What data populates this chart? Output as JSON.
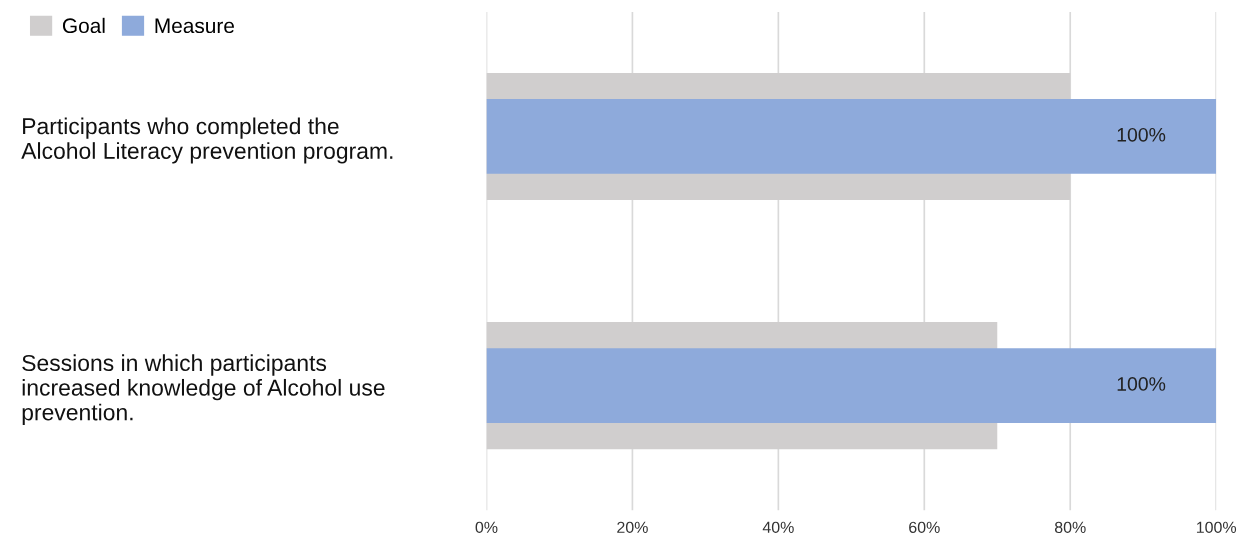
{
  "chart_data": {
    "type": "bar",
    "orientation": "horizontal",
    "categories": [
      "Participants who completed the\nAlcohol Literacy prevention program.",
      "Sessions in which participants\nincreased knowledge of Alcohol use\nprevention."
    ],
    "series": [
      {
        "name": "Goal",
        "color": "#d0cece",
        "values": [
          80,
          70
        ]
      },
      {
        "name": "Measure",
        "color": "#8eaadb",
        "values": [
          100,
          100
        ],
        "value_labels": [
          "100%",
          "100%"
        ]
      }
    ],
    "xlim": [
      0,
      100
    ],
    "xticks": [
      {
        "value": 0,
        "label": "0%"
      },
      {
        "value": 20,
        "label": "20%"
      },
      {
        "value": 40,
        "label": "40%"
      },
      {
        "value": 60,
        "label": "60%"
      },
      {
        "value": 80,
        "label": "80%"
      },
      {
        "value": 100,
        "label": "100%"
      }
    ],
    "grid": "x",
    "legend": "top left"
  }
}
